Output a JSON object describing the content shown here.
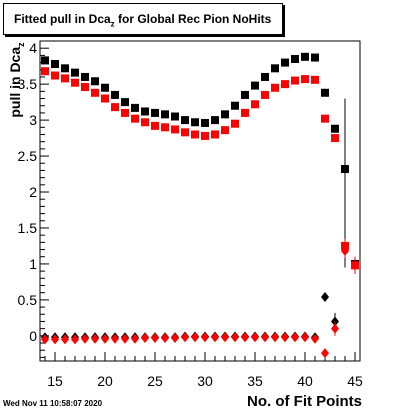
{
  "chart_data": {
    "type": "scatter",
    "title": {
      "prefix": "Fitted pull in Dca",
      "sub": "z",
      "suffix": " for Global Rec Pion NoHits"
    },
    "xlabel": "No. of Fit Points",
    "ylabel": {
      "prefix": "pull in Dca",
      "sub": "z"
    },
    "xlim": [
      13.5,
      45.5
    ],
    "ylim": [
      -0.35,
      4.1
    ],
    "xticks": [
      15,
      20,
      25,
      30,
      35,
      40,
      45
    ],
    "yticks": [
      0,
      0.5,
      1,
      1.5,
      2,
      2.5,
      3,
      3.5,
      4
    ],
    "ytick_labels": [
      "0",
      "0.5",
      "1",
      "1.5",
      "2",
      "2.5",
      "3",
      "3.5",
      "4"
    ],
    "xtick_labels": [
      "15",
      "20",
      "25",
      "30",
      "35",
      "40",
      "45"
    ],
    "grid": false,
    "series": [
      {
        "color": "#000000",
        "marker": "square",
        "x": [
          14,
          15,
          16,
          17,
          18,
          19,
          20,
          21,
          22,
          23,
          24,
          25,
          26,
          27,
          28,
          29,
          30,
          31,
          32,
          33,
          34,
          35,
          36,
          37,
          38,
          39,
          40,
          41,
          42,
          43,
          44,
          45
        ],
        "y": [
          3.83,
          3.78,
          3.72,
          3.66,
          3.6,
          3.54,
          3.45,
          3.35,
          3.25,
          3.17,
          3.12,
          3.1,
          3.08,
          3.05,
          3.0,
          2.97,
          2.96,
          3.0,
          3.08,
          3.2,
          3.35,
          3.48,
          3.6,
          3.72,
          3.8,
          3.85,
          3.88,
          3.87,
          3.38,
          2.88,
          2.32,
          1.0
        ]
      },
      {
        "color": "#ff0000",
        "marker": "square",
        "x": [
          14,
          15,
          16,
          17,
          18,
          19,
          20,
          21,
          22,
          23,
          24,
          25,
          26,
          27,
          28,
          29,
          30,
          31,
          32,
          33,
          34,
          35,
          36,
          37,
          38,
          39,
          40,
          41,
          42,
          43,
          44,
          45
        ],
        "y": [
          3.68,
          3.62,
          3.58,
          3.52,
          3.46,
          3.38,
          3.3,
          3.18,
          3.1,
          3.02,
          2.97,
          2.92,
          2.9,
          2.87,
          2.83,
          2.8,
          2.78,
          2.8,
          2.86,
          2.95,
          3.1,
          3.22,
          3.35,
          3.45,
          3.5,
          3.55,
          3.57,
          3.56,
          3.02,
          2.75,
          1.25,
          0.98
        ],
        "err": [
          0,
          0,
          0,
          0,
          0,
          0,
          0,
          0,
          0,
          0,
          0,
          0,
          0,
          0,
          0,
          0,
          0,
          0,
          0,
          0,
          0,
          0,
          0,
          0,
          0,
          0,
          0,
          0,
          0,
          0,
          0.1,
          0.08
        ]
      },
      {
        "color": "#000000",
        "marker": "diamond",
        "x": [
          14,
          15,
          16,
          17,
          18,
          19,
          20,
          21,
          22,
          23,
          24,
          25,
          26,
          27,
          28,
          29,
          30,
          31,
          32,
          33,
          34,
          35,
          36,
          37,
          38,
          39,
          40,
          41,
          42,
          43
        ],
        "y": [
          -0.02,
          -0.02,
          -0.02,
          -0.02,
          -0.02,
          -0.02,
          -0.02,
          -0.02,
          -0.02,
          -0.02,
          -0.02,
          -0.02,
          -0.02,
          -0.02,
          -0.01,
          -0.01,
          -0.01,
          -0.01,
          -0.01,
          -0.01,
          -0.01,
          -0.01,
          -0.01,
          -0.01,
          -0.01,
          -0.01,
          -0.01,
          -0.02,
          0.54,
          0.2
        ],
        "err": [
          0,
          0,
          0,
          0,
          0,
          0,
          0,
          0,
          0,
          0,
          0,
          0,
          0,
          0,
          0,
          0,
          0,
          0,
          0,
          0,
          0,
          0,
          0,
          0,
          0,
          0,
          0,
          0,
          0,
          0.12
        ]
      },
      {
        "color": "#ff0000",
        "marker": "diamond",
        "x": [
          14,
          15,
          16,
          17,
          18,
          19,
          20,
          21,
          22,
          23,
          24,
          25,
          26,
          27,
          28,
          29,
          30,
          31,
          32,
          33,
          34,
          35,
          36,
          37,
          38,
          39,
          40,
          41,
          42,
          43,
          44,
          45
        ],
        "y": [
          -0.05,
          -0.05,
          -0.05,
          -0.05,
          -0.04,
          -0.04,
          -0.04,
          -0.04,
          -0.04,
          -0.04,
          -0.03,
          -0.03,
          -0.03,
          -0.03,
          -0.02,
          -0.02,
          -0.02,
          -0.02,
          -0.02,
          -0.02,
          -0.02,
          -0.02,
          -0.02,
          -0.02,
          -0.02,
          -0.02,
          -0.02,
          -0.04,
          -0.24,
          0.1,
          1.18,
          0.98
        ],
        "err": [
          0,
          0,
          0,
          0,
          0,
          0,
          0,
          0,
          0,
          0,
          0,
          0,
          0,
          0,
          0,
          0,
          0,
          0,
          0,
          0,
          0,
          0,
          0,
          0,
          0,
          0,
          0,
          0,
          0,
          0.1,
          0.1,
          0.12
        ]
      }
    ],
    "extra_error_bar": {
      "x": 44,
      "low": 0.95,
      "high": 3.3,
      "color": "#000000"
    }
  },
  "footer": {
    "timestamp": "Wed Nov 11 10:58:07 2020"
  }
}
